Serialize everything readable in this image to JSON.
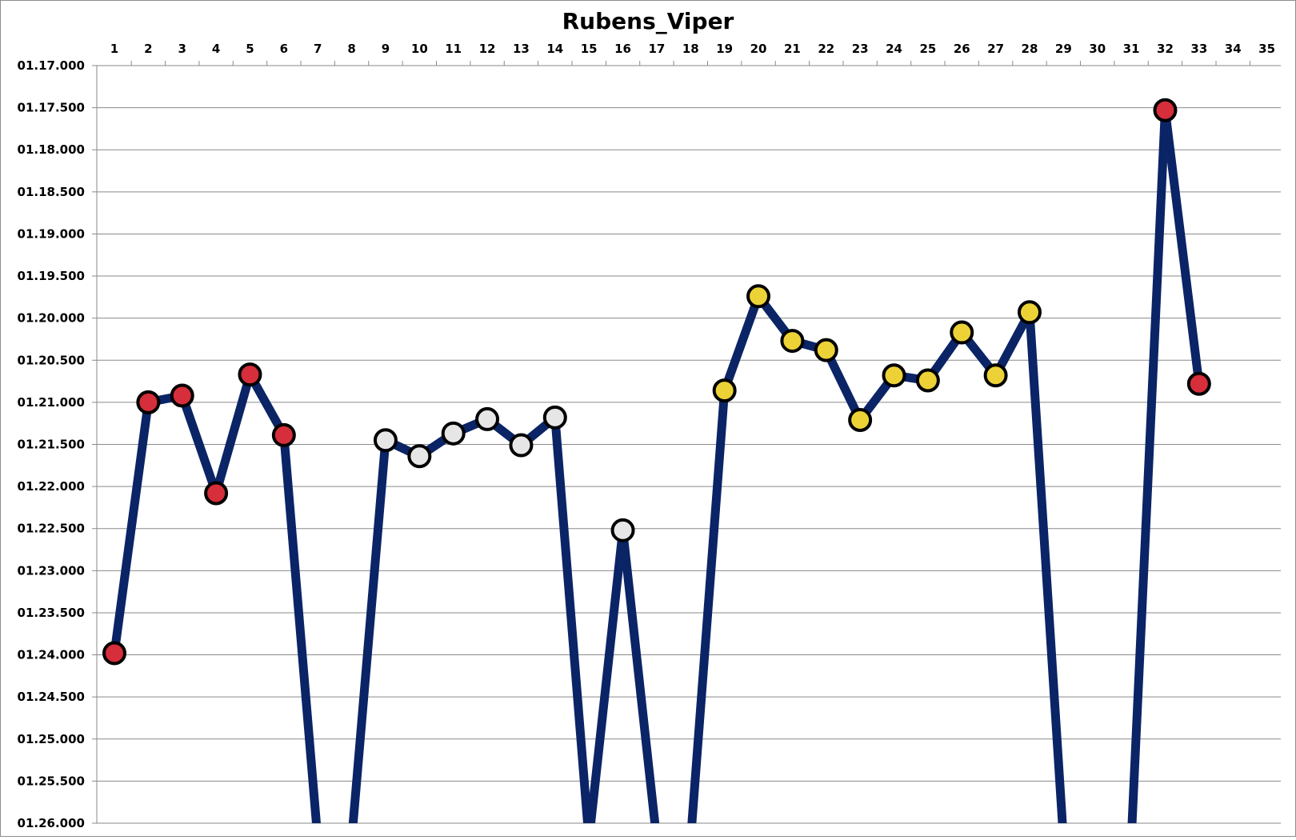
{
  "chart_data": {
    "type": "line",
    "title": "Rubens_Viper",
    "xlabel": "",
    "ylabel": "",
    "x_ticks": [
      "1",
      "2",
      "3",
      "4",
      "5",
      "6",
      "7",
      "8",
      "9",
      "10",
      "11",
      "12",
      "13",
      "14",
      "15",
      "16",
      "17",
      "18",
      "19",
      "20",
      "21",
      "22",
      "23",
      "24",
      "25",
      "26",
      "27",
      "28",
      "29",
      "30",
      "31",
      "32",
      "33",
      "34",
      "35"
    ],
    "y_ticks": [
      "01.17.000",
      "01.17.500",
      "01.18.000",
      "01.18.500",
      "01.19.000",
      "01.19.500",
      "01.20.000",
      "01.20.500",
      "01.21.000",
      "01.21.500",
      "01.22.000",
      "01.22.500",
      "01.23.000",
      "01.23.500",
      "01.24.000",
      "01.24.500",
      "01.25.000",
      "01.25.500",
      "01.26.000"
    ],
    "ylim_seconds": [
      77.0,
      86.0
    ],
    "y_axis_reversed": true,
    "grid": true,
    "line_color": "#0a2466",
    "series": [
      {
        "points": [
          {
            "x": 1,
            "y": 83.98,
            "color": "#d62e3a"
          },
          {
            "x": 2,
            "y": 81.0,
            "color": "#d62e3a"
          },
          {
            "x": 3,
            "y": 80.92,
            "color": "#d62e3a"
          },
          {
            "x": 4,
            "y": 82.08,
            "color": "#d62e3a"
          },
          {
            "x": 5,
            "y": 80.67,
            "color": "#d62e3a"
          },
          {
            "x": 6,
            "y": 81.39,
            "color": "#d62e3a"
          },
          {
            "x": 7,
            "y": 86.2,
            "color": null
          },
          {
            "x": 8,
            "y": 86.2,
            "color": null
          },
          {
            "x": 9,
            "y": 81.45,
            "color": "#e6e6e6"
          },
          {
            "x": 10,
            "y": 81.64,
            "color": "#e6e6e6"
          },
          {
            "x": 11,
            "y": 81.37,
            "color": "#e6e6e6"
          },
          {
            "x": 12,
            "y": 81.2,
            "color": "#e6e6e6"
          },
          {
            "x": 13,
            "y": 81.51,
            "color": "#e6e6e6"
          },
          {
            "x": 14,
            "y": 81.18,
            "color": "#e6e6e6"
          },
          {
            "x": 15,
            "y": 86.2,
            "color": null
          },
          {
            "x": 16,
            "y": 82.52,
            "color": "#e6e6e6"
          },
          {
            "x": 17,
            "y": 86.2,
            "color": null
          },
          {
            "x": 18,
            "y": 86.2,
            "color": null
          },
          {
            "x": 19,
            "y": 80.86,
            "color": "#ecd237"
          },
          {
            "x": 20,
            "y": 79.74,
            "color": "#ecd237"
          },
          {
            "x": 21,
            "y": 80.27,
            "color": "#ecd237"
          },
          {
            "x": 22,
            "y": 80.38,
            "color": "#ecd237"
          },
          {
            "x": 23,
            "y": 81.21,
            "color": "#ecd237"
          },
          {
            "x": 24,
            "y": 80.68,
            "color": "#ecd237"
          },
          {
            "x": 25,
            "y": 80.74,
            "color": "#ecd237"
          },
          {
            "x": 26,
            "y": 80.17,
            "color": "#ecd237"
          },
          {
            "x": 27,
            "y": 80.68,
            "color": "#ecd237"
          },
          {
            "x": 28,
            "y": 79.93,
            "color": "#ecd237"
          },
          {
            "x": 29,
            "y": 86.2,
            "color": null
          },
          {
            "x": 30,
            "y": 86.2,
            "color": null
          },
          {
            "x": 31,
            "y": 86.2,
            "color": null
          },
          {
            "x": 32,
            "y": 77.53,
            "color": "#d62e3a"
          },
          {
            "x": 33,
            "y": 80.78,
            "color": "#d62e3a"
          }
        ]
      }
    ]
  }
}
